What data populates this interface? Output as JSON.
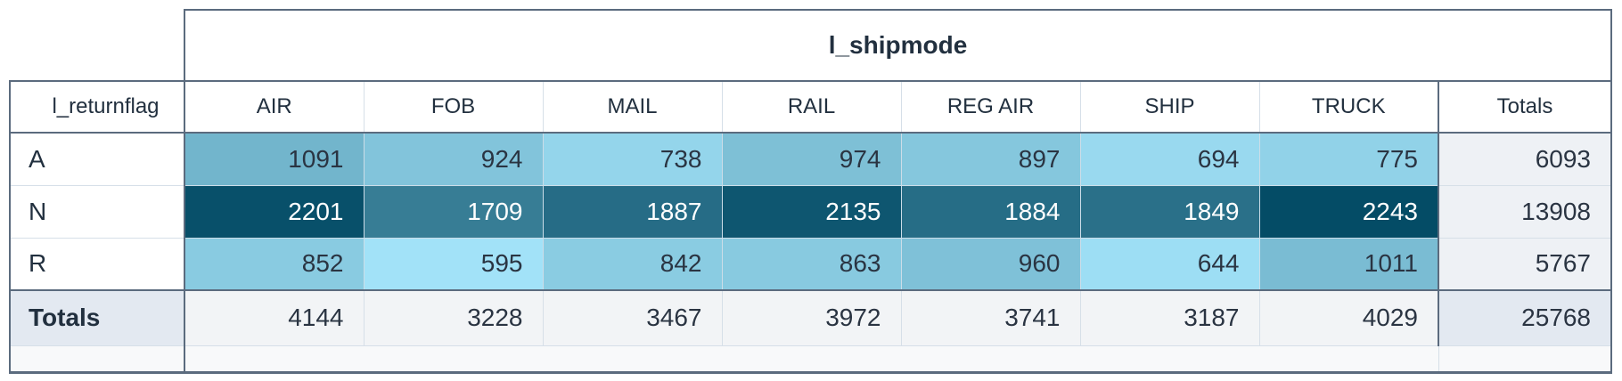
{
  "chart_data": {
    "type": "heatmap",
    "col_dimension": "l_shipmode",
    "row_dimension": "l_returnflag",
    "totals_label": "Totals",
    "columns": [
      "AIR",
      "FOB",
      "MAIL",
      "RAIL",
      "REG AIR",
      "SHIP",
      "TRUCK"
    ],
    "rows": [
      "A",
      "N",
      "R"
    ],
    "series": [
      {
        "name": "A",
        "values": [
          1091,
          924,
          738,
          974,
          897,
          694,
          775
        ]
      },
      {
        "name": "N",
        "values": [
          2201,
          1709,
          1887,
          2135,
          1884,
          1849,
          2243
        ]
      },
      {
        "name": "R",
        "values": [
          852,
          595,
          842,
          863,
          960,
          644,
          1011
        ]
      }
    ],
    "row_totals": [
      6093,
      13908,
      5767
    ],
    "col_totals": [
      4144,
      3228,
      3467,
      3972,
      3741,
      3187,
      4029
    ],
    "grand_total": 25768,
    "color_scale": {
      "domain": [
        595,
        2243
      ],
      "range": [
        "#a2e2f8",
        "#044c66"
      ]
    }
  },
  "heatmap_text": {
    "light_cell_text": "#2a3442",
    "dark_cell_text": "#ffffff",
    "luminance_threshold": 150
  },
  "colors": {
    "dark_border": "#5b6b7e",
    "light_border": "#d6dfe8",
    "heat_separator": "#ccdde8",
    "header_text": "#22303f",
    "value_text": "#2a3442",
    "value_text_inverse": "#ffffff",
    "totals_accent_bg": "#e3e9f1",
    "totals_col_bg": "#eef1f5",
    "totals_row_bg": "#f2f4f6",
    "strip_bg": "#f8f9fa"
  }
}
